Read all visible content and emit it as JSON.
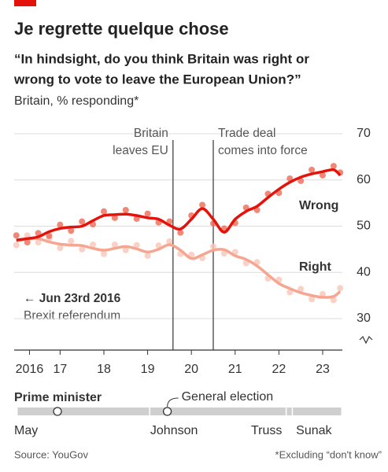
{
  "chart_data": {
    "type": "line",
    "title": "Je regrette quelque chose",
    "subtitle": [
      "“In hindsight, do you think Britain was right or",
      "wrong to vote to leave the European Union?”"
    ],
    "note": "Britain, % responding*",
    "x": [
      2016.5,
      2016.75,
      2017,
      2017.25,
      2017.5,
      2017.75,
      2018,
      2018.25,
      2018.5,
      2018.75,
      2019,
      2019.25,
      2019.5,
      2019.75,
      2020,
      2020.25,
      2020.5,
      2020.75,
      2021,
      2021.25,
      2021.5,
      2021.75,
      2022,
      2022.25,
      2022.5,
      2022.75,
      2023,
      2023.25,
      2023.5,
      2023.75,
      2023.9
    ],
    "xlim": [
      2016.45,
      2023.95
    ],
    "xticks": [
      {
        "value": 2016.8,
        "label": "2016"
      },
      {
        "value": 2017.5,
        "label": "17"
      },
      {
        "value": 2018.5,
        "label": "18"
      },
      {
        "value": 2019.5,
        "label": "19"
      },
      {
        "value": 2020.5,
        "label": "20"
      },
      {
        "value": 2021.5,
        "label": "21"
      },
      {
        "value": 2022.5,
        "label": "22"
      },
      {
        "value": 2023.5,
        "label": "23"
      }
    ],
    "ylim": [
      30,
      70
    ],
    "yticks": [
      30,
      40,
      50,
      60,
      70
    ],
    "grid": true,
    "series": [
      {
        "name": "Wrong",
        "color": "#e3120b",
        "point_color": "#ee6a55",
        "values": [
          47,
          47.3,
          47.7,
          48.8,
          49.5,
          49.8,
          50,
          51.2,
          52.3,
          52.5,
          52.6,
          52.3,
          51.8,
          51.5,
          50.2,
          49.4,
          51.5,
          53.8,
          51.5,
          48.7,
          51.5,
          53.2,
          54.3,
          56.2,
          58,
          59.5,
          60.6,
          61.3,
          61.8,
          62.2,
          61
        ],
        "point_values": [
          48,
          46.5,
          48.5,
          47.9,
          50.3,
          49,
          51,
          50.4,
          53.2,
          51.8,
          53.5,
          51.6,
          52.7,
          50.8,
          51,
          48.6,
          52.3,
          54.6,
          50.6,
          49.5,
          50.7,
          54,
          53.5,
          57,
          57.2,
          60.3,
          59.8,
          62.2,
          61,
          63,
          61.6
        ]
      },
      {
        "name": "Right",
        "color": "#f5a590",
        "point_color": "#f9c6b8",
        "values": [
          46.8,
          47.2,
          47.3,
          46.6,
          46.1,
          45.9,
          45.8,
          45.2,
          44.8,
          45.2,
          45.6,
          45.1,
          44.4,
          45,
          46,
          44.8,
          43,
          43.8,
          44.8,
          44.9,
          43.6,
          42.8,
          41.4,
          39.5,
          37.6,
          36.5,
          35.6,
          35,
          34.6,
          34.8,
          35.9
        ],
        "point_values": [
          45.9,
          48,
          46.5,
          47.4,
          45.3,
          46.8,
          45,
          46,
          44,
          46,
          44.8,
          45.9,
          43.6,
          45.8,
          46.7,
          44,
          43.8,
          43.1,
          45.6,
          44.1,
          44.4,
          42,
          42.2,
          38.7,
          38.4,
          35.7,
          36.4,
          34.2,
          35.3,
          34,
          36.6
        ]
      }
    ],
    "events": [
      {
        "x": 2020.08,
        "label": [
          "Britain",
          "leaves EU"
        ]
      },
      {
        "x": 2021.0,
        "label": [
          "Trade deal",
          "comes into force"
        ]
      }
    ],
    "referendum": [
      "← Jun 23rd 2016",
      "Brexit referendum"
    ],
    "pm": {
      "title": "Prime minister",
      "terms": [
        {
          "name": "May",
          "start": 2016.53
        },
        {
          "name": "Johnson",
          "start": 2019.56
        },
        {
          "name": "Truss",
          "start": 2022.68
        },
        {
          "name": "Sunak",
          "start": 2022.82
        }
      ],
      "elections": [
        2017.44,
        2019.95
      ],
      "election_label": "General election"
    },
    "source": "Source: YouGov",
    "footnote": "*Excluding “don't know”"
  }
}
